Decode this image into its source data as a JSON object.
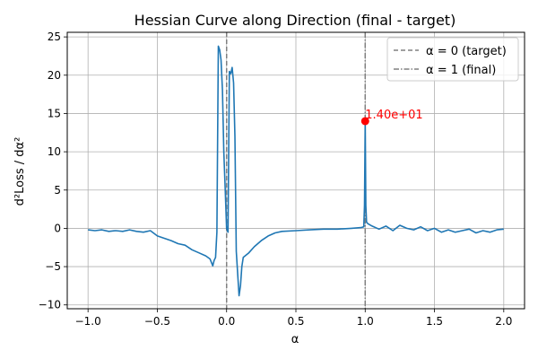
{
  "chart_data": {
    "type": "line",
    "title": "Hessian Curve along Direction (final - target)",
    "xlabel": "α",
    "ylabel": "d²Loss / dα²",
    "xlim": [
      -1.15,
      2.15
    ],
    "ylim": [
      -10.5,
      25.6
    ],
    "xticks": [
      -1.0,
      -0.5,
      0.0,
      0.5,
      1.0,
      1.5,
      2.0
    ],
    "xtick_labels": [
      "−1.0",
      "−0.5",
      "0.0",
      "0.5",
      "1.0",
      "1.5",
      "2.0"
    ],
    "yticks": [
      -10,
      -5,
      0,
      5,
      10,
      15,
      20,
      25
    ],
    "ytick_labels": [
      "−10",
      "−5",
      "0",
      "5",
      "10",
      "15",
      "20",
      "25"
    ],
    "grid": true,
    "legend_position": "top-right",
    "series": [
      {
        "color": "#1f77b4",
        "x": [
          -1.0,
          -0.95,
          -0.9,
          -0.85,
          -0.8,
          -0.75,
          -0.7,
          -0.65,
          -0.6,
          -0.55,
          -0.5,
          -0.45,
          -0.4,
          -0.35,
          -0.3,
          -0.25,
          -0.2,
          -0.15,
          -0.12,
          -0.1,
          -0.09,
          -0.08,
          -0.07,
          -0.06,
          -0.05,
          -0.04,
          -0.03,
          -0.02,
          -0.01,
          0.0,
          0.01,
          0.02,
          0.03,
          0.04,
          0.05,
          0.06,
          0.065,
          0.07,
          0.08,
          0.09,
          0.1,
          0.11,
          0.12,
          0.14,
          0.16,
          0.2,
          0.25,
          0.3,
          0.35,
          0.4,
          0.5,
          0.6,
          0.7,
          0.8,
          0.9,
          0.97,
          0.99,
          0.995,
          1.0,
          1.005,
          1.01,
          1.02,
          1.05,
          1.1,
          1.15,
          1.2,
          1.25,
          1.3,
          1.35,
          1.4,
          1.45,
          1.5,
          1.55,
          1.6,
          1.65,
          1.7,
          1.75,
          1.8,
          1.85,
          1.9,
          1.95,
          2.0
        ],
        "y": [
          -0.2,
          -0.3,
          -0.2,
          -0.4,
          -0.3,
          -0.4,
          -0.2,
          -0.4,
          -0.5,
          -0.3,
          -1.0,
          -1.3,
          -1.6,
          -2.0,
          -2.2,
          -2.8,
          -3.2,
          -3.6,
          -4.0,
          -4.9,
          -4.2,
          -3.8,
          -0.5,
          23.8,
          23.3,
          22.0,
          18.0,
          10.0,
          5.0,
          0.0,
          -0.5,
          20.5,
          20.2,
          21.0,
          19.0,
          12.0,
          4.0,
          -3.0,
          -6.0,
          -8.8,
          -7.5,
          -5.0,
          -3.8,
          -3.5,
          -3.2,
          -2.4,
          -1.6,
          -1.0,
          -0.6,
          -0.4,
          -0.3,
          -0.2,
          -0.1,
          -0.1,
          0.0,
          0.1,
          0.2,
          3.0,
          14.0,
          3.0,
          0.8,
          0.6,
          0.3,
          -0.1,
          0.3,
          -0.3,
          0.4,
          0.0,
          -0.2,
          0.2,
          -0.3,
          0.0,
          -0.5,
          -0.2,
          -0.5,
          -0.3,
          -0.1,
          -0.6,
          -0.3,
          -0.5,
          -0.2,
          -0.1
        ]
      }
    ],
    "vlines": [
      {
        "x": 0,
        "style": "dashed",
        "color": "#808080",
        "label": "α = 0 (target)"
      },
      {
        "x": 1,
        "style": "dashdot",
        "color": "#808080",
        "label": "α = 1 (final)"
      }
    ],
    "marker": {
      "x": 1.0,
      "y": 14.0,
      "color": "#ff0000",
      "label": "1.40e+01"
    }
  }
}
